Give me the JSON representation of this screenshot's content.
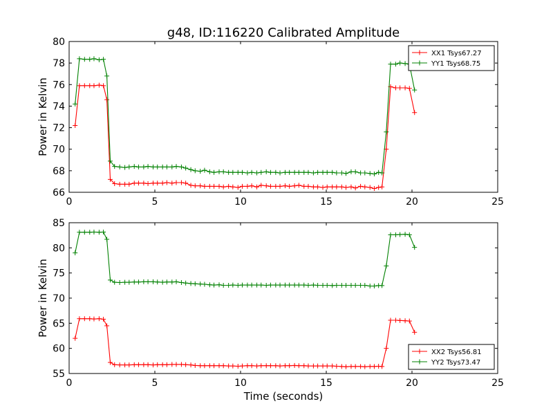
{
  "figure": {
    "title": "g48, ID:116220 Calibrated Amplitude",
    "xlabel": "Time (seconds)"
  },
  "colors": {
    "xx": "#ff0000",
    "yy": "#008000"
  },
  "chart_data": [
    {
      "type": "line",
      "ylabel": "Power in Kelvin",
      "xlim": [
        0,
        25
      ],
      "ylim": [
        66,
        80
      ],
      "xticks": [
        0,
        5,
        10,
        15,
        20,
        25
      ],
      "yticks": [
        66,
        68,
        70,
        72,
        74,
        76,
        78,
        80
      ],
      "grid": false,
      "legend_position": "top-right",
      "x": [
        0.35,
        0.6,
        0.9,
        1.2,
        1.45,
        1.75,
        2.0,
        2.2,
        2.4,
        2.65,
        2.95,
        3.25,
        3.5,
        3.8,
        4.05,
        4.35,
        4.6,
        4.9,
        5.15,
        5.45,
        5.7,
        6.0,
        6.25,
        6.55,
        6.8,
        7.1,
        7.35,
        7.65,
        7.9,
        8.2,
        8.45,
        8.75,
        9.0,
        9.3,
        9.55,
        9.85,
        10.1,
        10.4,
        10.65,
        10.95,
        11.2,
        11.5,
        11.75,
        12.05,
        12.3,
        12.6,
        12.85,
        13.15,
        13.4,
        13.7,
        13.95,
        14.25,
        14.5,
        14.8,
        15.05,
        15.35,
        15.6,
        15.9,
        16.15,
        16.45,
        16.7,
        17.0,
        17.25,
        17.55,
        17.8,
        18.05,
        18.25,
        18.5,
        18.75,
        19.05,
        19.3,
        19.6,
        19.85,
        20.15
      ],
      "series": [
        {
          "name": "XX1 Tsys67.27",
          "color": "#ff0000",
          "values": [
            72.2,
            75.9,
            75.9,
            75.9,
            75.9,
            75.95,
            75.9,
            74.6,
            67.2,
            66.8,
            66.75,
            66.75,
            66.75,
            66.85,
            66.85,
            66.85,
            66.8,
            66.85,
            66.85,
            66.85,
            66.9,
            66.85,
            66.9,
            66.9,
            66.85,
            66.65,
            66.6,
            66.6,
            66.55,
            66.55,
            66.55,
            66.55,
            66.5,
            66.55,
            66.5,
            66.45,
            66.55,
            66.55,
            66.6,
            66.5,
            66.65,
            66.6,
            66.55,
            66.55,
            66.55,
            66.6,
            66.55,
            66.6,
            66.65,
            66.55,
            66.55,
            66.5,
            66.5,
            66.45,
            66.5,
            66.5,
            66.5,
            66.5,
            66.45,
            66.5,
            66.4,
            66.55,
            66.5,
            66.45,
            66.35,
            66.45,
            66.5,
            70.0,
            75.8,
            75.7,
            75.7,
            75.7,
            75.65,
            73.4
          ]
        },
        {
          "name": "YY1 Tsys68.75",
          "color": "#008000",
          "values": [
            74.2,
            78.4,
            78.35,
            78.35,
            78.4,
            78.3,
            78.35,
            76.8,
            68.9,
            68.4,
            68.35,
            68.3,
            68.35,
            68.4,
            68.35,
            68.35,
            68.4,
            68.35,
            68.35,
            68.35,
            68.35,
            68.35,
            68.4,
            68.35,
            68.25,
            68.1,
            68.0,
            67.95,
            68.05,
            67.9,
            67.85,
            67.9,
            67.9,
            67.85,
            67.85,
            67.85,
            67.85,
            67.8,
            67.85,
            67.8,
            67.85,
            67.9,
            67.85,
            67.85,
            67.8,
            67.85,
            67.85,
            67.85,
            67.85,
            67.85,
            67.85,
            67.8,
            67.85,
            67.85,
            67.85,
            67.85,
            67.8,
            67.8,
            67.75,
            67.9,
            67.9,
            67.8,
            67.8,
            67.75,
            67.7,
            67.85,
            67.8,
            71.6,
            77.9,
            77.9,
            78.0,
            77.95,
            77.9,
            75.5
          ]
        }
      ]
    },
    {
      "type": "line",
      "ylabel": "Power in Kelvin",
      "xlim": [
        0,
        25
      ],
      "ylim": [
        55,
        85
      ],
      "xticks": [
        0,
        5,
        10,
        15,
        20,
        25
      ],
      "yticks": [
        55,
        60,
        65,
        70,
        75,
        80,
        85
      ],
      "grid": false,
      "legend_position": "bottom-right",
      "x": [
        0.35,
        0.6,
        0.9,
        1.2,
        1.45,
        1.75,
        2.0,
        2.2,
        2.4,
        2.65,
        2.95,
        3.25,
        3.5,
        3.8,
        4.05,
        4.35,
        4.6,
        4.9,
        5.15,
        5.45,
        5.7,
        6.0,
        6.25,
        6.55,
        6.8,
        7.1,
        7.35,
        7.65,
        7.9,
        8.2,
        8.45,
        8.75,
        9.0,
        9.3,
        9.55,
        9.85,
        10.1,
        10.4,
        10.65,
        10.95,
        11.2,
        11.5,
        11.75,
        12.05,
        12.3,
        12.6,
        12.85,
        13.15,
        13.4,
        13.7,
        13.95,
        14.25,
        14.5,
        14.8,
        15.05,
        15.35,
        15.6,
        15.9,
        16.15,
        16.45,
        16.7,
        17.0,
        17.25,
        17.55,
        17.8,
        18.05,
        18.25,
        18.5,
        18.75,
        19.05,
        19.3,
        19.6,
        19.85,
        20.15
      ],
      "series": [
        {
          "name": "XX2 Tsys56.81",
          "color": "#ff0000",
          "values": [
            62.0,
            65.9,
            65.9,
            65.9,
            65.85,
            65.9,
            65.8,
            64.5,
            57.2,
            56.75,
            56.7,
            56.7,
            56.7,
            56.75,
            56.75,
            56.75,
            56.75,
            56.7,
            56.75,
            56.75,
            56.75,
            56.8,
            56.8,
            56.8,
            56.75,
            56.7,
            56.6,
            56.55,
            56.55,
            56.55,
            56.55,
            56.55,
            56.55,
            56.5,
            56.5,
            56.45,
            56.5,
            56.55,
            56.55,
            56.5,
            56.55,
            56.55,
            56.55,
            56.55,
            56.5,
            56.55,
            56.55,
            56.6,
            56.55,
            56.55,
            56.5,
            56.5,
            56.5,
            56.5,
            56.5,
            56.5,
            56.45,
            56.4,
            56.35,
            56.4,
            56.4,
            56.4,
            56.35,
            56.4,
            56.4,
            56.45,
            56.4,
            60.0,
            65.6,
            65.6,
            65.55,
            65.5,
            65.45,
            63.2
          ]
        },
        {
          "name": "YY2 Tsys73.47",
          "color": "#008000",
          "values": [
            79.0,
            83.1,
            83.1,
            83.1,
            83.15,
            83.1,
            83.15,
            81.7,
            73.6,
            73.15,
            73.1,
            73.15,
            73.15,
            73.2,
            73.2,
            73.25,
            73.25,
            73.25,
            73.2,
            73.15,
            73.2,
            73.2,
            73.25,
            73.1,
            73.0,
            72.9,
            72.85,
            72.8,
            72.75,
            72.65,
            72.6,
            72.65,
            72.55,
            72.55,
            72.6,
            72.55,
            72.6,
            72.6,
            72.6,
            72.6,
            72.6,
            72.55,
            72.6,
            72.6,
            72.6,
            72.6,
            72.6,
            72.6,
            72.6,
            72.6,
            72.55,
            72.6,
            72.55,
            72.55,
            72.55,
            72.5,
            72.55,
            72.55,
            72.55,
            72.55,
            72.55,
            72.55,
            72.55,
            72.4,
            72.4,
            72.5,
            72.5,
            76.4,
            82.6,
            82.6,
            82.65,
            82.7,
            82.6,
            80.1
          ]
        }
      ]
    }
  ]
}
